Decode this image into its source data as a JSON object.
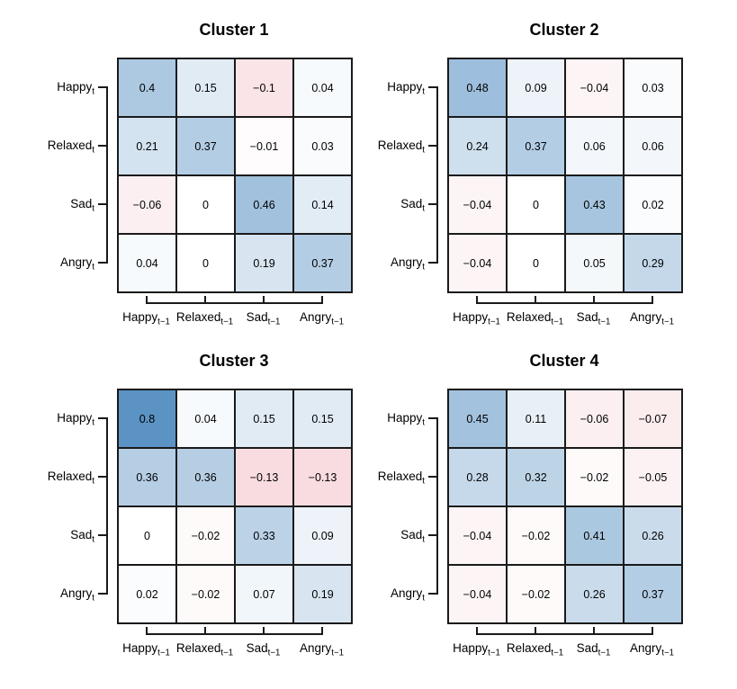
{
  "chart_data": {
    "type": "heatmap",
    "layout": "2x2-panel-grid",
    "legend": "none",
    "grid": true,
    "value_range": [
      -1,
      1
    ],
    "color_scale": {
      "negative": "#D42A3E",
      "zero": "#FFFFFF",
      "positive": "#5B93C4",
      "abs_max": 0.8
    },
    "row_labels": [
      {
        "base": "Happy",
        "sub": "t"
      },
      {
        "base": "Relaxed",
        "sub": "t"
      },
      {
        "base": "Sad",
        "sub": "t"
      },
      {
        "base": "Angry",
        "sub": "t"
      }
    ],
    "col_labels": [
      {
        "base": "Happy",
        "sub": "t−1"
      },
      {
        "base": "Relaxed",
        "sub": "t−1"
      },
      {
        "base": "Sad",
        "sub": "t−1"
      },
      {
        "base": "Angry",
        "sub": "t−1"
      }
    ],
    "panels": [
      {
        "title": "Cluster 1",
        "values": [
          [
            0.4,
            0.15,
            -0.1,
            0.04
          ],
          [
            0.21,
            0.37,
            -0.01,
            0.03
          ],
          [
            -0.06,
            0,
            0.46,
            0.14
          ],
          [
            0.04,
            0,
            0.19,
            0.37
          ]
        ]
      },
      {
        "title": "Cluster 2",
        "values": [
          [
            0.48,
            0.09,
            -0.04,
            0.03
          ],
          [
            0.24,
            0.37,
            0.06,
            0.06
          ],
          [
            -0.04,
            0,
            0.43,
            0.02
          ],
          [
            -0.04,
            0,
            0.05,
            0.29
          ]
        ]
      },
      {
        "title": "Cluster 3",
        "values": [
          [
            0.8,
            0.04,
            0.15,
            0.15
          ],
          [
            0.36,
            0.36,
            -0.13,
            -0.13
          ],
          [
            0,
            -0.02,
            0.33,
            0.09
          ],
          [
            0.02,
            -0.02,
            0.07,
            0.19
          ]
        ]
      },
      {
        "title": "Cluster 4",
        "values": [
          [
            0.45,
            0.11,
            -0.06,
            -0.07
          ],
          [
            0.28,
            0.32,
            -0.02,
            -0.05
          ],
          [
            -0.04,
            -0.02,
            0.41,
            0.26
          ],
          [
            -0.04,
            -0.02,
            0.26,
            0.37
          ]
        ]
      }
    ]
  }
}
